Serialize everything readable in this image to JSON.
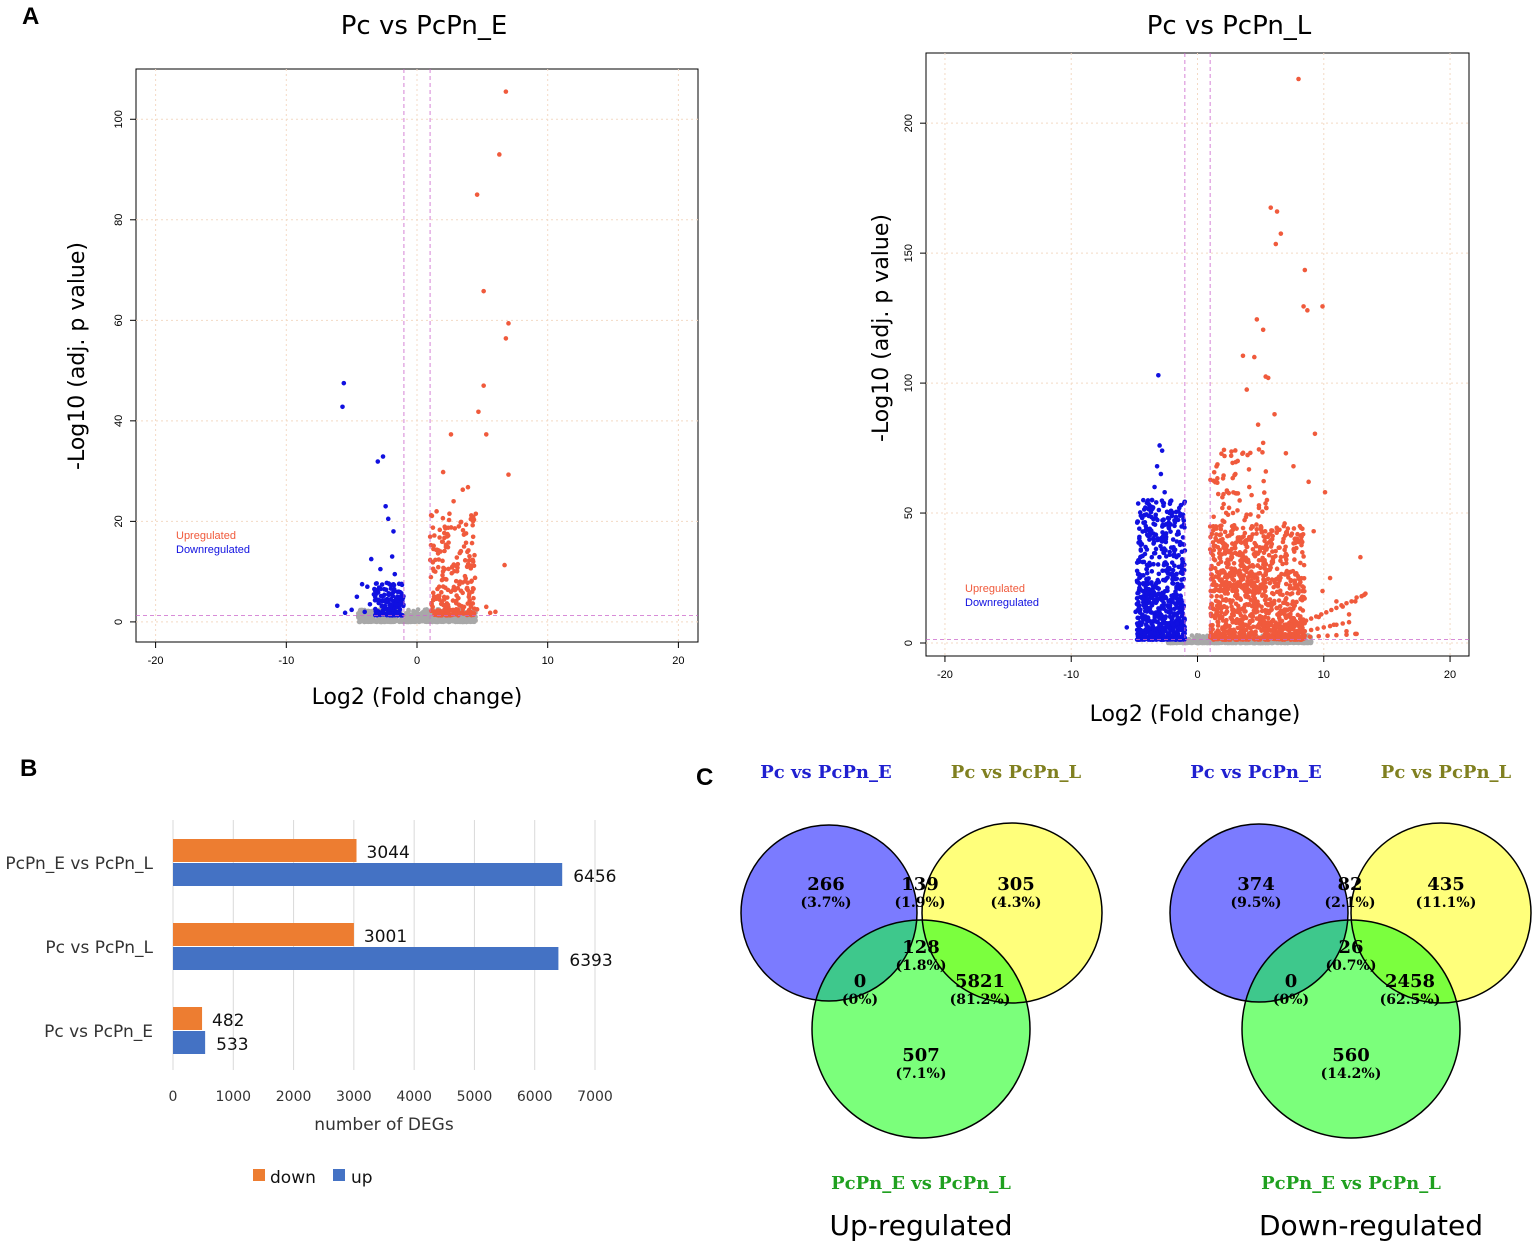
{
  "panels": {
    "a": "A",
    "b": "B",
    "c": "C"
  },
  "colors": {
    "up": "#f05a3c",
    "down": "#1010e0",
    "ns": "#a8a8a8",
    "bar_down": "#ed7d31",
    "bar_up": "#4472c4",
    "venn_e": "#7b7bff",
    "venn_l": "#ffff7b",
    "venn_el": "#7bff7b",
    "head_e": "#2020d0",
    "head_l": "#808020",
    "head_el": "#20a020"
  },
  "chart_data": [
    {
      "type": "scatter",
      "title": "Pc vs PcPn_E",
      "xlabel": "Log2 (Fold change)",
      "ylabel": "-Log10 (adj. p value)",
      "xlim": [
        -21.5,
        21.5
      ],
      "ylim": [
        -4,
        110
      ],
      "xticks": [
        "-20",
        "-10",
        "0",
        "10",
        "20"
      ],
      "xtick_values": [
        -20,
        -10,
        0,
        10,
        20
      ],
      "yticks": [
        "0",
        "20",
        "40",
        "60",
        "80",
        "100"
      ],
      "ytick_values": [
        0,
        20,
        40,
        60,
        80,
        100
      ],
      "legend": [
        "Upregulated",
        "Downregulated"
      ],
      "thresholds": {
        "fc": [
          -1,
          1
        ],
        "p": 1.3
      },
      "up_points": [
        [
          6.8,
          105.5
        ],
        [
          6.3,
          93
        ],
        [
          4.6,
          85
        ],
        [
          5.1,
          65.8
        ],
        [
          7,
          59.4
        ],
        [
          6.8,
          56.4
        ],
        [
          5.1,
          47
        ],
        [
          4.7,
          41.8
        ],
        [
          5.3,
          37.3
        ],
        [
          2.6,
          37.3
        ],
        [
          7,
          29.3
        ],
        [
          6.7,
          11.3
        ],
        [
          3.9,
          26.8
        ],
        [
          3.5,
          26.3
        ],
        [
          2,
          29.8
        ],
        [
          2.8,
          24
        ],
        [
          1.5,
          22
        ],
        [
          3.2,
          19
        ],
        [
          2.3,
          17
        ],
        [
          1.8,
          14
        ],
        [
          3.6,
          15
        ],
        [
          4.3,
          12
        ],
        [
          2.7,
          11
        ],
        [
          1.4,
          10
        ],
        [
          2.2,
          8.5
        ],
        [
          3.3,
          8
        ],
        [
          1.7,
          7
        ],
        [
          2.6,
          6
        ],
        [
          4,
          5.5
        ],
        [
          1.3,
          5
        ],
        [
          5.3,
          3
        ],
        [
          6,
          2
        ],
        [
          4.6,
          2.5
        ],
        [
          3.8,
          1.8
        ],
        [
          2.4,
          3
        ],
        [
          1.9,
          4
        ],
        [
          1.2,
          3
        ],
        [
          3,
          2.5
        ],
        [
          5.6,
          1.8
        ],
        [
          4.2,
          1.6
        ]
      ],
      "down_points": [
        [
          -5.6,
          47.5
        ],
        [
          -5.7,
          42.8
        ],
        [
          -2.6,
          32.9
        ],
        [
          -3,
          31.9
        ],
        [
          -2.4,
          23
        ],
        [
          -2.2,
          20.5
        ],
        [
          -1.8,
          18
        ],
        [
          -1.9,
          13
        ],
        [
          -3.5,
          12.5
        ],
        [
          -2.8,
          10.5
        ],
        [
          -1.7,
          9.5
        ],
        [
          -4.2,
          7.5
        ],
        [
          -3.8,
          7
        ],
        [
          -2.5,
          6.5
        ],
        [
          -1.4,
          6
        ],
        [
          -4.6,
          5
        ],
        [
          -3.2,
          5
        ],
        [
          -2,
          4.5
        ],
        [
          -6.1,
          3.2
        ],
        [
          -5.5,
          1.8
        ],
        [
          -5,
          2.4
        ],
        [
          -3.6,
          3.5
        ],
        [
          -2.6,
          3
        ],
        [
          -1.6,
          3.5
        ],
        [
          -1.3,
          2.5
        ],
        [
          -4,
          2
        ],
        [
          -3,
          1.8
        ],
        [
          -2.2,
          2.2
        ]
      ],
      "up_cloud": {
        "x": [
          1,
          4.5
        ],
        "y": [
          1.3,
          22
        ],
        "n": 220
      },
      "down_cloud": {
        "x": [
          -3.3,
          -1
        ],
        "y": [
          1.3,
          8
        ],
        "n": 150
      },
      "ns_cloud": {
        "x": [
          -4.5,
          4.5
        ],
        "y": [
          0,
          2.5
        ],
        "n": 450
      }
    },
    {
      "type": "scatter",
      "title": "Pc vs PcPn_L",
      "xlabel": "Log2 (Fold change)",
      "ylabel": "-Log10 (adj. p value)",
      "xlim": [
        -21.5,
        21.5
      ],
      "ylim": [
        -5,
        227
      ],
      "xticks": [
        "-20",
        "-10",
        "0",
        "10",
        "20"
      ],
      "xtick_values": [
        -20,
        -10,
        0,
        10,
        20
      ],
      "yticks": [
        "0",
        "50",
        "100",
        "150",
        "200"
      ],
      "ytick_values": [
        0,
        50,
        100,
        150,
        200
      ],
      "legend": [
        "Upregulated",
        "Downregulated"
      ],
      "thresholds": {
        "fc": [
          -1,
          1
        ],
        "p": 1.3
      },
      "up_points": [
        [
          8,
          217
        ],
        [
          5.8,
          167.5
        ],
        [
          6.3,
          166
        ],
        [
          6.6,
          157.5
        ],
        [
          6.2,
          153.5
        ],
        [
          8.5,
          143.5
        ],
        [
          9.9,
          129.5
        ],
        [
          8.4,
          129.5
        ],
        [
          8.7,
          128
        ],
        [
          4.7,
          124.5
        ],
        [
          5.2,
          120.5
        ],
        [
          4.5,
          110
        ],
        [
          3.6,
          110.5
        ],
        [
          5.4,
          102.5
        ],
        [
          5.6,
          102
        ],
        [
          3.9,
          97.5
        ],
        [
          9.3,
          80.5
        ],
        [
          7,
          73
        ],
        [
          7.6,
          68
        ],
        [
          4.8,
          84
        ],
        [
          5.2,
          77
        ],
        [
          6.1,
          88
        ],
        [
          8.8,
          62
        ],
        [
          10.1,
          58
        ],
        [
          9.2,
          43
        ],
        [
          12.9,
          33
        ],
        [
          11,
          16
        ],
        [
          12,
          11
        ],
        [
          13.2,
          18.5
        ],
        [
          9.6,
          10
        ],
        [
          10.8,
          7
        ],
        [
          11.8,
          4.5
        ],
        [
          12.6,
          3.5
        ],
        [
          3,
          65
        ],
        [
          2.5,
          52
        ],
        [
          1.8,
          45
        ],
        [
          4.1,
          60
        ],
        [
          6.9,
          46
        ],
        [
          7.7,
          40
        ],
        [
          5.5,
          55
        ],
        [
          10.5,
          25
        ],
        [
          11.5,
          14
        ],
        [
          12.5,
          16
        ],
        [
          9.9,
          20
        ]
      ],
      "down_points": [
        [
          -3.1,
          103
        ],
        [
          -3,
          76
        ],
        [
          -2.8,
          74
        ],
        [
          -3.2,
          68
        ],
        [
          -2.9,
          65
        ],
        [
          -3.4,
          60
        ],
        [
          -2.6,
          58
        ],
        [
          -3.6,
          55
        ],
        [
          -2.2,
          50
        ],
        [
          -4.1,
          45
        ],
        [
          -3.8,
          42
        ],
        [
          -4.4,
          38
        ],
        [
          -4,
          30
        ],
        [
          -4.6,
          25
        ],
        [
          -5.6,
          6
        ],
        [
          -4.8,
          15
        ],
        [
          -4.4,
          10
        ],
        [
          -4.5,
          5
        ],
        [
          -2.5,
          40
        ],
        [
          -3.3,
          48
        ],
        [
          -4.2,
          20
        ],
        [
          -2.2,
          35
        ],
        [
          -4.9,
          12
        ]
      ],
      "up_cloud": {
        "x": [
          1,
          8.5
        ],
        "y": [
          1.3,
          45
        ],
        "n": 900
      },
      "up_cloud2": {
        "x": [
          1,
          5.5
        ],
        "y": [
          20,
          75
        ],
        "n": 240
      },
      "down_cloud": {
        "x": [
          -4.8,
          -1
        ],
        "y": [
          1.3,
          55
        ],
        "n": 700
      },
      "ns_cloud": {
        "x": [
          -2.5,
          9
        ],
        "y": [
          0,
          3
        ],
        "n": 500
      },
      "trail_points": [
        [
          13.3,
          19
        ],
        [
          13,
          18
        ],
        [
          12.6,
          17.5
        ],
        [
          12.2,
          16
        ],
        [
          11.8,
          15.3
        ],
        [
          11.4,
          14.5
        ],
        [
          11,
          13.5
        ],
        [
          10.6,
          12.7
        ],
        [
          10.2,
          11.8
        ],
        [
          9.8,
          11
        ],
        [
          9.4,
          10.2
        ],
        [
          9,
          9.4
        ],
        [
          8.6,
          8.6
        ],
        [
          8.2,
          7.8
        ],
        [
          7.8,
          7
        ],
        [
          7.4,
          6.3
        ],
        [
          7,
          5.6
        ],
        [
          12,
          8
        ],
        [
          11.5,
          7.5
        ],
        [
          11,
          7
        ],
        [
          10.5,
          6.5
        ],
        [
          10,
          6
        ],
        [
          9.5,
          5.5
        ],
        [
          9,
          5
        ],
        [
          8.5,
          4.5
        ],
        [
          8,
          4
        ],
        [
          7.5,
          3.5
        ],
        [
          12.5,
          3.5
        ],
        [
          11.8,
          3.2
        ],
        [
          11,
          3
        ],
        [
          10.3,
          2.8
        ],
        [
          9.6,
          2.6
        ],
        [
          8.9,
          2.4
        ],
        [
          8.2,
          2.2
        ]
      ]
    },
    {
      "type": "bar",
      "categories": [
        "PcPn_E vs PcPn_L",
        "Pc vs PcPn_L",
        "Pc vs PcPn_E"
      ],
      "series": [
        {
          "name": "down",
          "values": [
            3044,
            3001,
            482
          ]
        },
        {
          "name": "up",
          "values": [
            6456,
            6393,
            533
          ]
        }
      ],
      "value_labels": {
        "down": [
          "3044",
          "3001",
          "482"
        ],
        "up": [
          "6456",
          "6393",
          "533"
        ]
      },
      "xlabel": "number of DEGs",
      "xlim": [
        0,
        7000
      ],
      "xticks": [
        "0",
        "1000",
        "2000",
        "3000",
        "4000",
        "5000",
        "6000",
        "7000"
      ],
      "xtick_values": [
        0,
        1000,
        2000,
        3000,
        4000,
        5000,
        6000,
        7000
      ],
      "legend": [
        "down",
        "up"
      ]
    }
  ],
  "venn": {
    "up": {
      "subtitle": "Up-regulated",
      "set_e": "Pc vs PcPn_E",
      "set_l": "Pc vs PcPn_L",
      "set_el": "PcPn_E vs PcPn_L",
      "regions": [
        {
          "n": "266",
          "p": "(3.7%)"
        },
        {
          "n": "139",
          "p": "(1.9%)"
        },
        {
          "n": "305",
          "p": "(4.3%)"
        },
        {
          "n": "128",
          "p": "(1.8%)"
        },
        {
          "n": "0",
          "p": "(0%)"
        },
        {
          "n": "5821",
          "p": "(81.2%)"
        },
        {
          "n": "507",
          "p": "(7.1%)"
        }
      ]
    },
    "down": {
      "subtitle": "Down-regulated",
      "set_e": "Pc vs PcPn_E",
      "set_l": "Pc vs PcPn_L",
      "set_el": "PcPn_E vs PcPn_L",
      "regions": [
        {
          "n": "374",
          "p": "(9.5%)"
        },
        {
          "n": "82",
          "p": "(2.1%)"
        },
        {
          "n": "435",
          "p": "(11.1%)"
        },
        {
          "n": "26",
          "p": "(0.7%)"
        },
        {
          "n": "0",
          "p": "(0%)"
        },
        {
          "n": "2458",
          "p": "(62.5%)"
        },
        {
          "n": "560",
          "p": "(14.2%)"
        }
      ]
    }
  }
}
